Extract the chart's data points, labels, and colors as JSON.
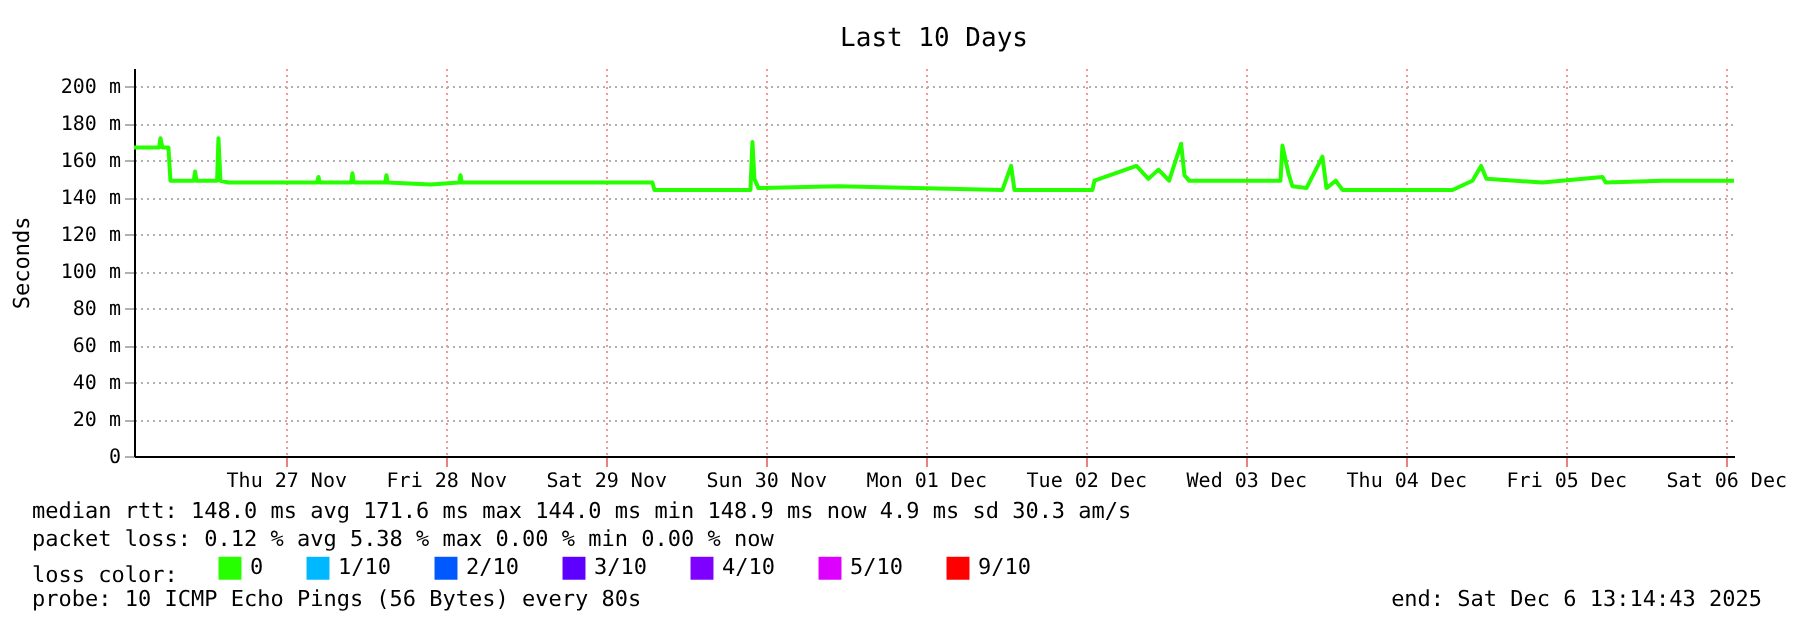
{
  "chart_data": {
    "type": "line",
    "title": "Last 10 Days",
    "ylabel": "Seconds",
    "xlim": [
      "2025-11-26T13:14",
      "2025-12-06T13:14"
    ],
    "xticks": [
      {
        "value": "2025-11-27T12:00",
        "label": "Thu 27 Nov"
      },
      {
        "value": "2025-11-28T12:00",
        "label": "Fri 28 Nov"
      },
      {
        "value": "2025-11-29T12:00",
        "label": "Sat 29 Nov"
      },
      {
        "value": "2025-11-30T12:00",
        "label": "Sun 30 Nov"
      },
      {
        "value": "2025-12-01T12:00",
        "label": "Mon 01 Dec"
      },
      {
        "value": "2025-12-02T12:00",
        "label": "Tue 02 Dec"
      },
      {
        "value": "2025-12-03T12:00",
        "label": "Wed 03 Dec"
      },
      {
        "value": "2025-12-04T12:00",
        "label": "Thu 04 Dec"
      },
      {
        "value": "2025-12-05T12:00",
        "label": "Fri 05 Dec"
      },
      {
        "value": "2025-12-06T12:00",
        "label": "Sat 06 Dec"
      }
    ],
    "ylim": [
      0,
      210
    ],
    "yticks": [
      0,
      {
        "value": 20,
        "label": "20 m"
      },
      {
        "value": 40,
        "label": "40 m"
      },
      {
        "value": 60,
        "label": "60 m"
      },
      {
        "value": 80,
        "label": "80 m"
      },
      {
        "value": 100,
        "label": "100 m"
      },
      {
        "value": 120,
        "label": "120 m"
      },
      {
        "value": 140,
        "label": "140 m"
      },
      {
        "value": 160,
        "label": "160 m"
      },
      {
        "value": 180,
        "label": "180 m"
      },
      {
        "value": 200,
        "label": "200 m"
      }
    ],
    "grid": true,
    "legend": "bottom",
    "legend_title": "loss color:",
    "series": [
      {
        "name": "0",
        "color": "#26ff00",
        "x": [
          "2025-11-26T13:14",
          "2025-11-26T17:00",
          "2025-11-26T17:12",
          "2025-11-26T17:30",
          "2025-11-26T18:24",
          "2025-11-26T18:42",
          "2025-11-26T22:12",
          "2025-11-26T22:24",
          "2025-11-26T22:36",
          "2025-11-27T01:42",
          "2025-11-27T01:54",
          "2025-11-27T02:12",
          "2025-11-27T03:24",
          "2025-11-27T16:42",
          "2025-11-27T16:54",
          "2025-11-27T17:06",
          "2025-11-27T21:48",
          "2025-11-27T22:00",
          "2025-11-27T22:12",
          "2025-11-28T02:54",
          "2025-11-28T03:06",
          "2025-11-28T03:18",
          "2025-11-28T09:42",
          "2025-11-28T14:00",
          "2025-11-28T14:12",
          "2025-11-28T14:24",
          "2025-11-29T08:30",
          "2025-11-29T19:00",
          "2025-11-29T19:18",
          "2025-11-30T09:42",
          "2025-11-30T10:00",
          "2025-11-30T10:18",
          "2025-11-30T10:54",
          "2025-11-30T22:54",
          "2025-12-01T23:30",
          "2025-12-02T00:48",
          "2025-12-02T01:18",
          "2025-12-02T13:00",
          "2025-12-02T13:18",
          "2025-12-02T19:36",
          "2025-12-02T21:24",
          "2025-12-02T22:54",
          "2025-12-03T00:30",
          "2025-12-03T02:18",
          "2025-12-03T02:48",
          "2025-12-03T03:30",
          "2025-12-03T17:12",
          "2025-12-03T17:30",
          "2025-12-03T18:24",
          "2025-12-03T19:00",
          "2025-12-03T21:06",
          "2025-12-03T23:30",
          "2025-12-04T00:06",
          "2025-12-04T01:30",
          "2025-12-04T02:30",
          "2025-12-04T19:00",
          "2025-12-04T22:00",
          "2025-12-04T23:18",
          "2025-12-05T00:06",
          "2025-12-05T08:30",
          "2025-12-05T17:30",
          "2025-12-05T18:00",
          "2025-12-06T02:30",
          "2025-12-06T13:14"
        ],
        "values": [
          167,
          167,
          172,
          167,
          167,
          149,
          149,
          154,
          149,
          149,
          172,
          149,
          148,
          148,
          151,
          148,
          148,
          153,
          148,
          148,
          152,
          148,
          147,
          148,
          152,
          148,
          148,
          148,
          144,
          144,
          170,
          150,
          145,
          146,
          144,
          157,
          144,
          144,
          149,
          157,
          150,
          155,
          149,
          169,
          152,
          149,
          149,
          168,
          153,
          146,
          145,
          162,
          145,
          149,
          144,
          144,
          149,
          157,
          150,
          148,
          151,
          148,
          149,
          149
        ]
      },
      {
        "name": "1/10",
        "color": "#00b8ff"
      },
      {
        "name": "2/10",
        "color": "#0059ff"
      },
      {
        "name": "3/10",
        "color": "#5e00ff"
      },
      {
        "name": "4/10",
        "color": "#7e00ff"
      },
      {
        "name": "5/10",
        "color": "#dd00ff"
      },
      {
        "name": "9/10",
        "color": "#ff0000"
      }
    ],
    "annotations": [
      "median rtt: 148.0 ms avg 171.6 ms max 144.0 ms min 148.9 ms now 4.9 ms sd 30.3 am/s",
      "packet loss: 0.12 % avg 5.38 % max 0.00 % min 0.00 % now",
      "probe: 10 ICMP Echo Pings (56 Bytes) every 80s",
      "end: Sat Dec 6 13:14:43 2025"
    ]
  }
}
